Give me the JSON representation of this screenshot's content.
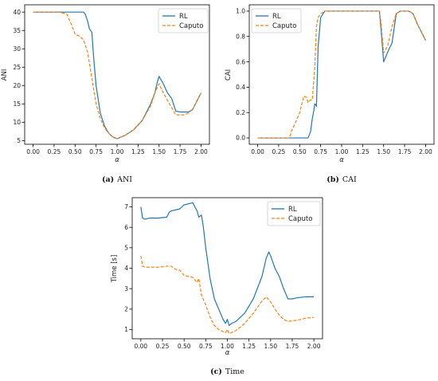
{
  "chart_data": [
    {
      "type": "line",
      "title": "",
      "xlabel": "α",
      "ylabel": "ANI",
      "xlim": [
        -0.1,
        2.1
      ],
      "ylim": [
        4,
        42
      ],
      "xticks": [
        0.0,
        0.25,
        0.5,
        0.75,
        1.0,
        1.25,
        1.5,
        1.75,
        2.0
      ],
      "xtick_labels": [
        "0.00",
        "0.25",
        "0.50",
        "0.75",
        "1.00",
        "1.25",
        "1.50",
        "1.75",
        "2.00"
      ],
      "yticks": [
        5,
        10,
        15,
        20,
        25,
        30,
        35,
        40
      ],
      "ytick_labels": [
        "5",
        "10",
        "15",
        "20",
        "25",
        "30",
        "35",
        "40"
      ],
      "legend": "top-right",
      "caption_tag": "(a)",
      "caption_text": "ANI",
      "series": [
        {
          "name": "RL",
          "color": "#1f77b4",
          "style": "solid",
          "x": [
            0.0,
            0.3,
            0.6,
            0.62,
            0.65,
            0.67,
            0.7,
            0.72,
            0.75,
            0.8,
            0.85,
            0.9,
            0.95,
            1.0,
            1.05,
            1.1,
            1.2,
            1.3,
            1.4,
            1.45,
            1.48,
            1.5,
            1.55,
            1.6,
            1.65,
            1.7,
            1.75,
            1.8,
            1.85,
            1.9,
            2.0
          ],
          "y": [
            40,
            40,
            40,
            39.5,
            37.5,
            35.5,
            34.5,
            28,
            20,
            12.5,
            9,
            7,
            6,
            5.5,
            6,
            6.5,
            8,
            10.5,
            15,
            18,
            21,
            22.5,
            20.5,
            18,
            16.5,
            13,
            12.8,
            12.8,
            12.8,
            13.5,
            18
          ]
        },
        {
          "name": "Caputo",
          "color": "#ff7f0e",
          "style": "dashed",
          "x": [
            0.0,
            0.3,
            0.4,
            0.45,
            0.5,
            0.55,
            0.6,
            0.65,
            0.7,
            0.75,
            0.8,
            0.85,
            0.9,
            0.95,
            1.0,
            1.05,
            1.1,
            1.2,
            1.3,
            1.4,
            1.45,
            1.5,
            1.55,
            1.6,
            1.65,
            1.7,
            1.75,
            1.8,
            1.85,
            1.9,
            2.0
          ],
          "y": [
            40,
            40,
            39.5,
            37,
            34,
            33.5,
            32.5,
            29,
            22,
            15,
            11,
            8.5,
            7,
            6,
            5.5,
            6,
            6.5,
            8,
            10.5,
            14.5,
            18,
            20.5,
            18,
            16,
            14,
            12,
            12,
            12,
            12.5,
            13.5,
            18
          ]
        }
      ]
    },
    {
      "type": "line",
      "title": "",
      "xlabel": "α",
      "ylabel": "CAI",
      "xlim": [
        -0.1,
        2.1
      ],
      "ylim": [
        -0.05,
        1.05
      ],
      "xticks": [
        0.0,
        0.25,
        0.5,
        0.75,
        1.0,
        1.25,
        1.5,
        1.75,
        2.0
      ],
      "xtick_labels": [
        "0.00",
        "0.25",
        "0.50",
        "0.75",
        "1.00",
        "1.25",
        "1.50",
        "1.75",
        "2.00"
      ],
      "yticks": [
        0.0,
        0.2,
        0.4,
        0.6,
        0.8,
        1.0
      ],
      "ytick_labels": [
        "0.0",
        "0.2",
        "0.4",
        "0.6",
        "0.8",
        "1.0"
      ],
      "legend": "top-left",
      "caption_tag": "(b)",
      "caption_text": "CAI",
      "series": [
        {
          "name": "RL",
          "color": "#1f77b4",
          "style": "solid",
          "x": [
            0.0,
            0.55,
            0.6,
            0.63,
            0.65,
            0.67,
            0.68,
            0.7,
            0.72,
            0.75,
            0.8,
            1.0,
            1.2,
            1.4,
            1.45,
            1.47,
            1.5,
            1.55,
            1.6,
            1.65,
            1.7,
            1.8,
            1.85,
            1.9,
            2.0
          ],
          "y": [
            0.0,
            0.0,
            0.0,
            0.05,
            0.15,
            0.22,
            0.27,
            0.25,
            0.72,
            0.95,
            1.0,
            1.0,
            1.0,
            1.0,
            1.0,
            0.85,
            0.6,
            0.68,
            0.75,
            0.98,
            1.0,
            1.0,
            0.98,
            0.9,
            0.77
          ]
        },
        {
          "name": "Caputo",
          "color": "#ff7f0e",
          "style": "dashed",
          "x": [
            0.0,
            0.38,
            0.4,
            0.45,
            0.5,
            0.55,
            0.58,
            0.6,
            0.63,
            0.65,
            0.68,
            0.7,
            0.72,
            0.75,
            0.8,
            1.0,
            1.2,
            1.4,
            1.45,
            1.47,
            1.5,
            1.55,
            1.6,
            1.65,
            1.7,
            1.8,
            1.85,
            1.9,
            2.0
          ],
          "y": [
            0.0,
            0.0,
            0.05,
            0.12,
            0.2,
            0.33,
            0.32,
            0.28,
            0.3,
            0.3,
            0.55,
            0.88,
            0.95,
            0.98,
            1.0,
            1.0,
            1.0,
            1.0,
            1.0,
            0.9,
            0.67,
            0.73,
            0.88,
            0.98,
            1.0,
            1.0,
            0.98,
            0.9,
            0.77
          ]
        }
      ]
    },
    {
      "type": "line",
      "title": "",
      "xlabel": "α",
      "ylabel": "Time [s]",
      "xlim": [
        -0.1,
        2.1
      ],
      "ylim": [
        0.55,
        7.45
      ],
      "xticks": [
        0.0,
        0.25,
        0.5,
        0.75,
        1.0,
        1.25,
        1.5,
        1.75,
        2.0
      ],
      "xtick_labels": [
        "0.00",
        "0.25",
        "0.50",
        "0.75",
        "1.00",
        "1.25",
        "1.50",
        "1.75",
        "2.00"
      ],
      "yticks": [
        1,
        2,
        3,
        4,
        5,
        6,
        7
      ],
      "ytick_labels": [
        "1",
        "2",
        "3",
        "4",
        "5",
        "6",
        "7"
      ],
      "legend": "top-right",
      "caption_tag": "(c)",
      "caption_text": "Time",
      "series": [
        {
          "name": "RL",
          "color": "#1f77b4",
          "style": "solid",
          "x": [
            0.0,
            0.02,
            0.05,
            0.1,
            0.2,
            0.3,
            0.33,
            0.35,
            0.4,
            0.45,
            0.5,
            0.55,
            0.6,
            0.65,
            0.67,
            0.7,
            0.72,
            0.75,
            0.8,
            0.85,
            0.9,
            0.95,
            0.98,
            1.0,
            1.02,
            1.05,
            1.1,
            1.2,
            1.3,
            1.4,
            1.45,
            1.48,
            1.5,
            1.55,
            1.6,
            1.65,
            1.7,
            1.75,
            1.8,
            1.9,
            2.0
          ],
          "y": [
            7.0,
            6.45,
            6.4,
            6.45,
            6.45,
            6.5,
            6.75,
            6.8,
            6.85,
            6.9,
            7.1,
            7.15,
            7.2,
            6.8,
            6.5,
            6.6,
            6.1,
            5.0,
            3.5,
            2.5,
            2.0,
            1.5,
            1.3,
            1.5,
            1.2,
            1.3,
            1.4,
            1.8,
            2.5,
            3.6,
            4.5,
            4.8,
            4.6,
            4.0,
            3.6,
            3.0,
            2.5,
            2.5,
            2.55,
            2.6,
            2.6
          ]
        },
        {
          "name": "Caputo",
          "color": "#ff7f0e",
          "style": "dashed",
          "x": [
            0.0,
            0.02,
            0.05,
            0.1,
            0.2,
            0.3,
            0.35,
            0.4,
            0.45,
            0.5,
            0.55,
            0.6,
            0.65,
            0.67,
            0.7,
            0.75,
            0.8,
            0.85,
            0.9,
            0.95,
            0.98,
            1.0,
            1.02,
            1.05,
            1.1,
            1.2,
            1.3,
            1.4,
            1.45,
            1.5,
            1.55,
            1.6,
            1.65,
            1.7,
            1.8,
            1.9,
            2.0
          ],
          "y": [
            4.6,
            4.1,
            4.05,
            4.05,
            4.05,
            4.1,
            4.1,
            3.95,
            3.9,
            3.65,
            3.6,
            3.55,
            3.3,
            3.5,
            2.7,
            2.2,
            1.6,
            1.2,
            1.0,
            0.9,
            0.85,
            1.0,
            0.8,
            0.85,
            0.95,
            1.3,
            1.8,
            2.4,
            2.6,
            2.35,
            2.0,
            1.7,
            1.5,
            1.4,
            1.45,
            1.55,
            1.6
          ]
        }
      ]
    }
  ]
}
